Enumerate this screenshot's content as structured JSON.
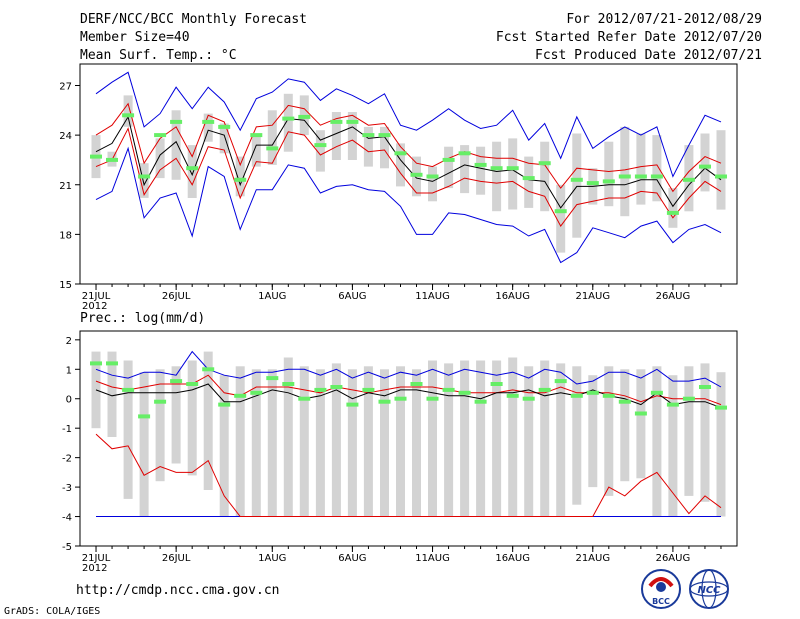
{
  "header": {
    "title": "DERF/NCC/BCC Monthly Forecast",
    "member_size": "Member Size=40",
    "variable_top": "Mean Surf. Temp.: °C",
    "period": "For 2012/07/21-2012/08/29",
    "refer_date": "Fcst Started Refer Date 2012/07/20",
    "produced_date": "Fcst Produced Date 2012/07/21"
  },
  "footer": {
    "url": "http://cmdp.ncc.cma.gov.cn",
    "credit": "GrADS: COLA/IGES",
    "logo_left_text": "BCC",
    "logo_right_text": "NCC"
  },
  "colors": {
    "box": "#d3d3d3",
    "mean": "#000000",
    "spread": "#e00000",
    "extreme": "#0000dd",
    "median": "#66ee66"
  },
  "chart_data": [
    {
      "type": "box-line",
      "title": "Mean Surf. Temp.: °C",
      "ylim": [
        15,
        28.3
      ],
      "yticks": [
        15,
        18,
        21,
        24,
        27
      ],
      "xlim": [
        0,
        41
      ],
      "xticks": [
        {
          "x": 1,
          "label": "21JUL"
        },
        {
          "x": 6,
          "label": "26JUL"
        },
        {
          "x": 12,
          "label": "1AUG"
        },
        {
          "x": 17,
          "label": "6AUG"
        },
        {
          "x": 22,
          "label": "11AUG"
        },
        {
          "x": 27,
          "label": "16AUG"
        },
        {
          "x": 32,
          "label": "21AUG"
        },
        {
          "x": 37,
          "label": "26AUG"
        }
      ],
      "year_label": "2012",
      "mean": [
        23.0,
        23.5,
        25.1,
        21.0,
        22.8,
        23.6,
        21.6,
        24.3,
        24.0,
        21.0,
        23.4,
        23.4,
        25.0,
        24.9,
        23.7,
        24.1,
        24.5,
        23.8,
        23.9,
        22.5,
        21.4,
        21.2,
        21.7,
        22.2,
        22.0,
        21.8,
        21.9,
        21.3,
        21.2,
        19.6,
        20.9,
        20.9,
        21.0,
        21.0,
        21.3,
        21.3,
        19.7,
        21.0,
        22.0,
        21.3
      ],
      "upper_spread": [
        24.0,
        24.6,
        25.9,
        22.3,
        23.8,
        24.5,
        22.7,
        25.2,
        24.8,
        22.2,
        24.5,
        24.6,
        25.8,
        25.6,
        24.6,
        25.0,
        25.2,
        24.6,
        24.7,
        23.3,
        22.3,
        22.1,
        22.6,
        23.0,
        22.7,
        22.6,
        22.6,
        22.3,
        22.2,
        20.8,
        22.0,
        21.9,
        21.8,
        21.9,
        22.1,
        22.2,
        20.6,
        21.8,
        22.7,
        22.3
      ],
      "lower_spread": [
        22.1,
        22.5,
        24.4,
        20.4,
        21.9,
        22.6,
        21.0,
        23.3,
        23.1,
        20.2,
        22.4,
        22.3,
        24.2,
        24.0,
        22.8,
        23.3,
        23.7,
        23.0,
        23.1,
        21.7,
        20.5,
        20.5,
        20.9,
        21.4,
        21.2,
        21.1,
        21.2,
        20.6,
        20.3,
        18.5,
        19.8,
        20.0,
        20.2,
        20.2,
        20.6,
        20.5,
        19.0,
        20.2,
        21.2,
        20.6
      ],
      "max": [
        26.5,
        27.2,
        27.8,
        24.5,
        25.3,
        26.9,
        25.6,
        26.9,
        26.0,
        24.3,
        26.2,
        26.6,
        27.4,
        27.2,
        26.1,
        26.8,
        26.4,
        25.9,
        26.5,
        24.6,
        24.3,
        24.9,
        25.6,
        24.9,
        24.4,
        24.6,
        25.5,
        23.7,
        24.7,
        22.6,
        25.1,
        23.2,
        23.9,
        24.5,
        24.0,
        24.5,
        21.5,
        23.4,
        25.2,
        24.8
      ],
      "min": [
        20.1,
        20.6,
        23.2,
        19.0,
        20.2,
        20.5,
        17.9,
        22.1,
        21.5,
        18.3,
        20.7,
        20.7,
        22.2,
        22.0,
        20.5,
        20.9,
        21.0,
        20.7,
        20.6,
        19.7,
        18.0,
        18.0,
        19.3,
        19.2,
        18.9,
        18.6,
        18.5,
        17.9,
        18.3,
        16.3,
        16.9,
        18.4,
        18.1,
        17.8,
        18.5,
        18.8,
        17.5,
        18.3,
        18.6,
        18.1
      ],
      "box_top": [
        24.0,
        23.0,
        26.4,
        22.3,
        23.8,
        25.5,
        23.4,
        25.3,
        24.7,
        22.7,
        24.1,
        25.5,
        26.5,
        26.4,
        24.3,
        25.4,
        25.4,
        24.5,
        24.5,
        23.5,
        22.7,
        22.1,
        23.3,
        23.4,
        23.3,
        23.6,
        23.8,
        22.7,
        23.6,
        21.0,
        24.1,
        22.0,
        23.6,
        24.5,
        24.1,
        24.0,
        20.8,
        23.4,
        24.1,
        24.3
      ],
      "box_bottom": [
        21.4,
        22.1,
        24.5,
        20.2,
        21.4,
        21.3,
        20.2,
        23.6,
        22.9,
        20.3,
        22.1,
        22.2,
        23.0,
        24.0,
        21.8,
        22.5,
        22.5,
        22.1,
        22.0,
        20.9,
        20.3,
        20.0,
        20.8,
        20.5,
        20.4,
        19.4,
        19.5,
        19.6,
        19.4,
        16.9,
        17.8,
        19.8,
        19.7,
        19.1,
        19.8,
        20.0,
        18.4,
        19.4,
        20.6,
        19.5
      ],
      "median": [
        22.7,
        22.5,
        25.2,
        21.5,
        24.0,
        24.8,
        22.0,
        24.8,
        24.5,
        21.3,
        24.0,
        23.2,
        25.0,
        25.1,
        23.4,
        24.8,
        24.8,
        24.0,
        24.0,
        22.9,
        21.6,
        21.5,
        22.5,
        22.9,
        22.2,
        22.0,
        22.0,
        21.4,
        22.3,
        19.4,
        21.3,
        21.1,
        21.2,
        21.5,
        21.5,
        21.5,
        19.3,
        21.3,
        22.1,
        21.5
      ]
    },
    {
      "type": "box-line",
      "title": "Prec.: log(mm/d)",
      "ylim": [
        -5,
        2.3
      ],
      "yticks": [
        -5,
        -4,
        -3,
        -2,
        -1,
        0,
        1,
        2
      ],
      "xlim": [
        0,
        41
      ],
      "xticks": [
        {
          "x": 1,
          "label": "21JUL"
        },
        {
          "x": 6,
          "label": "26JUL"
        },
        {
          "x": 12,
          "label": "1AUG"
        },
        {
          "x": 17,
          "label": "6AUG"
        },
        {
          "x": 22,
          "label": "11AUG"
        },
        {
          "x": 27,
          "label": "16AUG"
        },
        {
          "x": 32,
          "label": "21AUG"
        },
        {
          "x": 37,
          "label": "26AUG"
        }
      ],
      "year_label": "2012",
      "mean": [
        0.3,
        0.1,
        0.2,
        0.2,
        0.2,
        0.2,
        0.3,
        0.5,
        -0.1,
        -0.1,
        0.1,
        0.3,
        0.2,
        0.0,
        0.1,
        0.3,
        0.0,
        0.2,
        0.1,
        0.3,
        0.3,
        0.2,
        0.1,
        0.1,
        0.0,
        0.2,
        0.2,
        0.3,
        0.1,
        0.2,
        0.1,
        0.3,
        0.1,
        0.0,
        -0.2,
        0.2,
        -0.2,
        -0.1,
        -0.1,
        -0.3
      ],
      "upper_spread": [
        0.6,
        0.4,
        0.3,
        0.4,
        0.5,
        0.5,
        0.5,
        0.8,
        0.2,
        0.1,
        0.4,
        0.4,
        0.4,
        0.3,
        0.2,
        0.4,
        0.3,
        0.2,
        0.3,
        0.4,
        0.4,
        0.4,
        0.3,
        0.2,
        0.2,
        0.2,
        0.3,
        0.2,
        0.2,
        0.4,
        0.2,
        0.2,
        0.2,
        0.1,
        -0.1,
        0.1,
        0.0,
        0.0,
        0.0,
        -0.2
      ],
      "lower_spread": [
        -1.2,
        -1.7,
        -1.6,
        -2.6,
        -2.3,
        -2.5,
        -2.5,
        -2.1,
        -3.3,
        -4.0,
        -4.0,
        -4.0,
        -4.0,
        -4.0,
        -4.0,
        -4.0,
        -4.0,
        -4.0,
        -4.0,
        -4.0,
        -4.0,
        -4.0,
        -4.0,
        -4.0,
        -4.0,
        -4.0,
        -4.0,
        -4.0,
        -4.0,
        -4.0,
        -4.0,
        -4.0,
        -3.0,
        -3.3,
        -2.8,
        -2.5,
        -3.2,
        -3.9,
        -3.3,
        -3.7
      ],
      "max": [
        1.0,
        0.8,
        0.7,
        0.9,
        0.9,
        0.8,
        1.6,
        1.0,
        0.8,
        0.7,
        0.9,
        0.9,
        1.0,
        1.0,
        0.8,
        1.0,
        0.7,
        0.9,
        0.7,
        0.9,
        0.8,
        1.0,
        0.8,
        1.0,
        0.9,
        0.8,
        0.9,
        0.7,
        1.0,
        0.9,
        0.5,
        0.6,
        0.9,
        0.9,
        0.7,
        1.0,
        0.6,
        0.6,
        0.7,
        0.4
      ],
      "min": [
        -4.0,
        -4.0,
        -4.0,
        -4.0,
        -4.0,
        -4.0,
        -4.0,
        -4.0,
        -4.0,
        -4.0,
        -4.0,
        -4.0,
        -4.0,
        -4.0,
        -4.0,
        -4.0,
        -4.0,
        -4.0,
        -4.0,
        -4.0,
        -4.0,
        -4.0,
        -4.0,
        -4.0,
        -4.0,
        -4.0,
        -4.0,
        -4.0,
        -4.0,
        -4.0,
        -4.0,
        -4.0,
        -4.0,
        -4.0,
        -4.0,
        -4.0,
        -4.0,
        -4.0,
        -4.0,
        -4.0
      ],
      "box_top": [
        1.6,
        1.6,
        1.3,
        0.9,
        1.0,
        1.1,
        1.3,
        1.6,
        0.8,
        1.1,
        1.0,
        1.0,
        1.4,
        1.1,
        1.0,
        1.2,
        1.0,
        1.1,
        1.0,
        1.1,
        1.0,
        1.3,
        1.2,
        1.3,
        1.3,
        1.3,
        1.4,
        1.1,
        1.3,
        1.2,
        1.1,
        0.8,
        1.1,
        1.0,
        1.0,
        1.1,
        0.8,
        1.1,
        1.2,
        0.9
      ],
      "box_bottom": [
        -1.0,
        -1.3,
        -3.4,
        -4.0,
        -2.8,
        -2.2,
        -2.6,
        -3.1,
        -4.0,
        -4.0,
        -4.0,
        -4.0,
        -4.0,
        -4.0,
        -4.0,
        -4.0,
        -4.0,
        -4.0,
        -4.0,
        -4.0,
        -4.0,
        -4.0,
        -4.0,
        -4.0,
        -4.0,
        -4.0,
        -4.0,
        -4.0,
        -4.0,
        -4.0,
        -3.6,
        -3.0,
        -3.3,
        -2.8,
        -2.7,
        -4.0,
        -4.0,
        -3.3,
        -3.5,
        -4.0
      ],
      "median": [
        1.2,
        1.2,
        0.3,
        -0.6,
        -0.1,
        0.6,
        0.5,
        1.0,
        -0.2,
        0.1,
        0.2,
        0.7,
        0.5,
        0.0,
        0.3,
        0.4,
        -0.2,
        0.3,
        -0.1,
        0.0,
        0.5,
        0.0,
        0.3,
        0.2,
        -0.1,
        0.5,
        0.1,
        0.0,
        0.3,
        0.6,
        0.1,
        0.2,
        0.1,
        -0.1,
        -0.5,
        0.2,
        -0.2,
        0.0,
        0.4,
        -0.3
      ]
    }
  ]
}
